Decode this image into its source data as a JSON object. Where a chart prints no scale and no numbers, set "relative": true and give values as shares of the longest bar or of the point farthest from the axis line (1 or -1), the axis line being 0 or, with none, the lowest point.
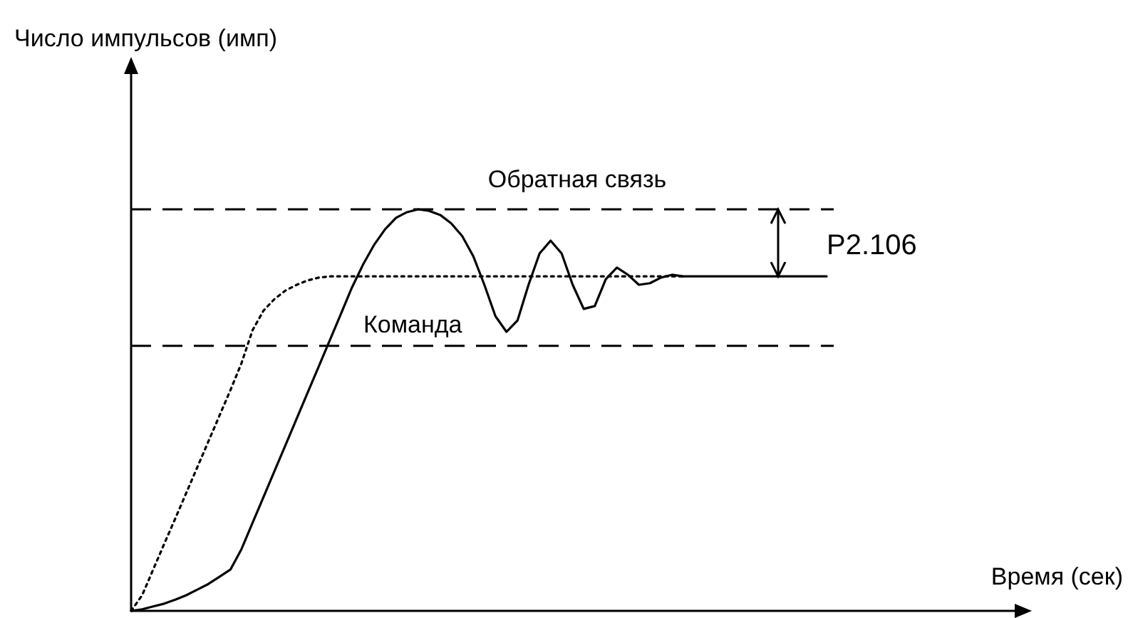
{
  "chart_data": {
    "type": "line",
    "relative": true,
    "marker": "none",
    "categories": [
      null,
      null,
      null,
      null,
      null,
      null,
      null,
      null,
      null,
      null,
      null,
      null,
      null,
      null,
      null,
      null,
      null,
      null,
      null,
      null,
      null,
      null,
      null,
      null,
      null,
      null,
      null,
      null,
      null,
      null,
      null,
      null,
      null,
      null,
      null,
      null,
      null,
      null,
      null,
      null,
      null,
      null,
      null,
      null,
      null,
      null,
      null,
      null,
      null,
      null,
      null,
      null,
      null,
      null,
      null,
      null,
      null,
      null,
      null,
      null,
      null,
      null,
      null,
      null
    ],
    "series": [
      {
        "color": "#000000",
        "line_style": "dotted",
        "values": [
          0,
          0.039,
          0.103,
          0.167,
          0.23,
          0.294,
          0.358,
          0.422,
          0.486,
          0.55,
          0.617,
          0.699,
          0.748,
          0.777,
          0.798,
          0.812,
          0.823,
          0.83,
          0.833,
          0.833,
          0.833,
          0.833,
          0.833,
          0.833,
          0.833,
          0.833,
          0.833,
          0.833,
          0.833,
          0.833,
          0.833,
          0.833,
          0.833,
          0.833,
          0.833,
          0.833,
          0.833,
          0.833,
          0.833,
          0.833,
          0.833,
          0.833,
          0.833,
          0.833,
          0.833,
          0.833,
          0.833,
          0.833,
          0.833,
          0.833,
          0.833,
          null,
          null,
          null,
          null,
          null,
          null,
          null,
          null,
          null,
          null,
          null,
          null,
          null
        ]
      },
      {
        "color": "#000000",
        "line_style": "solid",
        "values": [
          0,
          0.004,
          0.011,
          0.018,
          0.028,
          0.039,
          0.053,
          0.067,
          0.085,
          0.103,
          0.154,
          0.219,
          0.284,
          0.349,
          0.414,
          0.479,
          0.544,
          0.609,
          0.674,
          0.739,
          0.805,
          0.862,
          0.911,
          0.95,
          0.979,
          0.993,
          1.0,
          0.996,
          0.986,
          0.965,
          0.933,
          0.883,
          0.812,
          0.734,
          0.695,
          0.723,
          0.812,
          0.89,
          0.922,
          0.89,
          0.812,
          0.752,
          0.759,
          0.826,
          0.855,
          0.837,
          0.812,
          0.816,
          0.83,
          0.837,
          0.833,
          0.833,
          0.833,
          0.833,
          0.833,
          0.833,
          0.833,
          0.833,
          0.833,
          0.833,
          0.833,
          0.833,
          0.833,
          0.833
        ]
      }
    ],
    "ref_lines": [
      {
        "axis": "y",
        "value": 1.0,
        "color": "#000000",
        "line_style": "dashed"
      },
      {
        "axis": "y",
        "value": 0.66,
        "color": "#000000",
        "line_style": "dashed"
      }
    ],
    "annotations": [
      "Обратная связь",
      "Команда",
      "P2.106",
      "Число импульсов (имп)",
      "Время (сек)"
    ]
  }
}
